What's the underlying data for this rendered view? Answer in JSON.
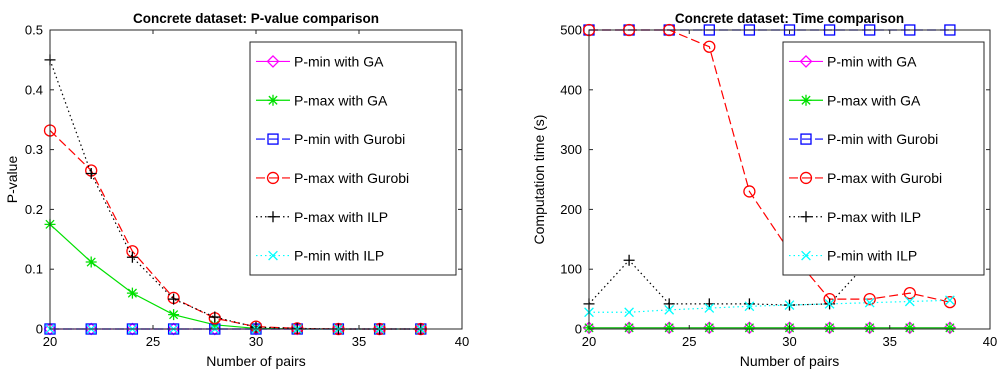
{
  "chart_data": [
    {
      "type": "line",
      "title": "Concrete dataset: P-value comparison",
      "xlabel": "Number of pairs",
      "ylabel": "P-value",
      "xlim": [
        20,
        40
      ],
      "ylim": [
        0,
        0.5
      ],
      "xticks": [
        20,
        25,
        30,
        35,
        40
      ],
      "yticks": [
        0,
        0.1,
        0.2,
        0.3,
        0.4,
        0.5
      ],
      "grid": false,
      "legend_position": "top-right",
      "x": [
        20,
        22,
        24,
        26,
        28,
        30,
        32,
        34,
        36,
        38
      ],
      "series": [
        {
          "name": "P-min with GA",
          "color": "#ff00ff",
          "marker": "diamond",
          "line": "solid",
          "values": [
            0,
            0,
            0,
            0,
            0,
            0,
            0,
            0,
            0,
            0
          ]
        },
        {
          "name": "P-max with GA",
          "color": "#00e000",
          "marker": "star",
          "line": "solid",
          "values": [
            0.175,
            0.112,
            0.06,
            0.024,
            0.007,
            0.001,
            0,
            0,
            0,
            0
          ]
        },
        {
          "name": "P-min with Gurobi",
          "color": "#0000ff",
          "marker": "square",
          "line": "dashed",
          "values": [
            0,
            0,
            0,
            0,
            0,
            0,
            0,
            0,
            0,
            0
          ]
        },
        {
          "name": "P-max with Gurobi",
          "color": "#ff0000",
          "marker": "circle",
          "line": "dashed",
          "values": [
            0.332,
            0.265,
            0.13,
            0.052,
            0.018,
            0.004,
            0.001,
            0,
            0,
            0
          ]
        },
        {
          "name": "P-max with ILP",
          "color": "#000000",
          "marker": "plus",
          "line": "dotted",
          "values": [
            0.45,
            0.26,
            0.12,
            0.05,
            0.02,
            0.003,
            0.001,
            0,
            0,
            0
          ]
        },
        {
          "name": "P-min with ILP",
          "color": "#00ffff",
          "marker": "x",
          "line": "dotted",
          "values": [
            0,
            0,
            0,
            0,
            0,
            0,
            0,
            0,
            0,
            0
          ]
        }
      ]
    },
    {
      "type": "line",
      "title": "Concrete dataset: Time comparison",
      "xlabel": "Number of pairs",
      "ylabel": "Computation time (s)",
      "xlim": [
        20,
        40
      ],
      "ylim": [
        0,
        500
      ],
      "xticks": [
        20,
        25,
        30,
        35,
        40
      ],
      "yticks": [
        0,
        100,
        200,
        300,
        400,
        500
      ],
      "grid": false,
      "legend_position": "top-right",
      "x": [
        20,
        22,
        24,
        26,
        28,
        30,
        32,
        34,
        36,
        38
      ],
      "series": [
        {
          "name": "P-min with GA",
          "color": "#ff00ff",
          "marker": "diamond",
          "line": "solid",
          "values": [
            2,
            2,
            2,
            2,
            2,
            2,
            2,
            2,
            2,
            2
          ]
        },
        {
          "name": "P-max with GA",
          "color": "#00e000",
          "marker": "star",
          "line": "solid",
          "values": [
            2,
            2,
            2,
            2,
            2,
            2,
            2,
            2,
            2,
            2
          ]
        },
        {
          "name": "P-min with Gurobi",
          "color": "#0000ff",
          "marker": "square",
          "line": "dashed",
          "values": [
            500,
            500,
            500,
            500,
            500,
            500,
            500,
            500,
            500,
            500
          ]
        },
        {
          "name": "P-max with Gurobi",
          "color": "#ff0000",
          "marker": "circle",
          "line": "dashed",
          "values": [
            500,
            500,
            500,
            472,
            230,
            130,
            50,
            50,
            60,
            45
          ]
        },
        {
          "name": "P-max with ILP",
          "color": "#000000",
          "marker": "plus",
          "line": "dotted",
          "values": [
            42,
            115,
            42,
            42,
            42,
            40,
            42,
            115,
            115,
            115
          ]
        },
        {
          "name": "P-min with ILP",
          "color": "#00ffff",
          "marker": "x",
          "line": "dotted",
          "values": [
            28,
            28,
            32,
            35,
            38,
            40,
            42,
            44,
            46,
            48
          ]
        }
      ]
    }
  ]
}
